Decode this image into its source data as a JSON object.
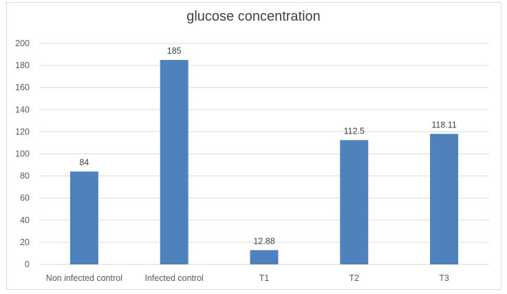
{
  "chart_data": {
    "type": "bar",
    "title": "glucose concentration",
    "categories": [
      "Non infected control",
      "Infected control",
      "T1",
      "T2",
      "T3"
    ],
    "values": [
      84,
      185,
      12.88,
      112.5,
      118.11
    ],
    "data_labels": [
      "84",
      "185",
      "12.88",
      "112.5",
      "118.11"
    ],
    "ylim": [
      0,
      200
    ],
    "yticks": [
      0,
      20,
      40,
      60,
      80,
      100,
      120,
      140,
      160,
      180,
      200
    ],
    "grid": true,
    "legend": "none",
    "bar_color": "#4f81bd"
  }
}
